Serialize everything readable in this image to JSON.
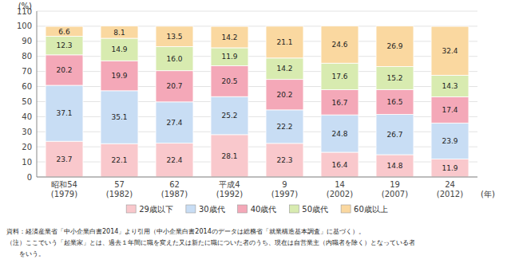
{
  "chart_data": {
    "type": "bar",
    "stacked": true,
    "categories": [
      "昭和54\n(1979)",
      "57\n(1982)",
      "62\n(1987)",
      "平成4\n(1992)",
      "9\n(1997)",
      "14\n(2002)",
      "19\n(2007)",
      "24\n(2012)"
    ],
    "series": [
      {
        "name": "29歳以下",
        "color": "#f9c8cc",
        "values": [
          23.7,
          22.1,
          22.4,
          28.1,
          22.3,
          16.4,
          14.8,
          11.9
        ]
      },
      {
        "name": "30歳代",
        "color": "#c8ddf4",
        "values": [
          37.1,
          35.1,
          27.4,
          25.2,
          22.2,
          24.8,
          26.7,
          23.9
        ]
      },
      {
        "name": "40歳代",
        "color": "#f4a8b8",
        "values": [
          20.2,
          19.9,
          20.7,
          20.5,
          20.2,
          16.7,
          16.5,
          17.4
        ]
      },
      {
        "name": "50歳代",
        "color": "#d8ebb0",
        "values": [
          12.3,
          14.9,
          16.0,
          11.9,
          14.2,
          17.6,
          15.2,
          14.3
        ],
        "value_labels": [
          "12.3",
          "14.9",
          "16.0",
          "11.9",
          "14.2",
          "17.6",
          "15.2",
          "14.3"
        ]
      },
      {
        "name": "60歳以上",
        "color": "#fad8a0",
        "values": [
          6.6,
          8.1,
          13.5,
          14.2,
          21.1,
          24.6,
          26.9,
          32.4
        ]
      }
    ],
    "ylabel": "(%)",
    "xlabel": "(年)",
    "ylim": [
      0,
      110
    ],
    "yticks": [
      0,
      10,
      20,
      30,
      40,
      50,
      60,
      70,
      80,
      90,
      100,
      110
    ],
    "grid": true,
    "legend": "bottom",
    "data_labels": true,
    "annotations": [
      "資料：経済産業省「中小企業白書2014」より引用（中小企業白書2014のデータは総務省「就業構造基本調査」に基づく）。",
      "（注）ここでいう「起業家」とは、過去１年間に職を変えた又は新たに職についた者のうち、現在は自営業主（内職者を除く）となっている者",
      "　　をいう。"
    ]
  }
}
